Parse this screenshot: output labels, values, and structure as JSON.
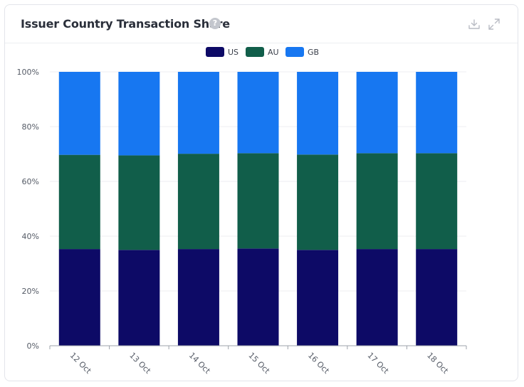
{
  "header": {
    "title": "Issuer Country Transaction Share",
    "help_icon": "question-circle-icon",
    "download_icon": "download-icon",
    "expand_icon": "expand-icon"
  },
  "colors": {
    "US": "#0d0a66",
    "AU": "#115e4a",
    "GB": "#1777f1"
  },
  "chart_data": {
    "type": "bar",
    "stacked": true,
    "title": "Issuer Country Transaction Share",
    "categories": [
      "12 Oct",
      "13 Oct",
      "14 Oct",
      "15 Oct",
      "16 Oct",
      "17 Oct",
      "18 Oct"
    ],
    "series": [
      {
        "name": "US",
        "values": [
          35.3,
          35.0,
          35.3,
          35.5,
          35.0,
          35.3,
          35.3
        ]
      },
      {
        "name": "AU",
        "values": [
          34.4,
          34.5,
          34.8,
          34.8,
          34.8,
          35.0,
          35.0
        ]
      },
      {
        "name": "GB",
        "values": [
          30.3,
          30.5,
          29.9,
          29.7,
          30.2,
          29.7,
          29.7
        ]
      }
    ],
    "yticks": [
      "0%",
      "20%",
      "40%",
      "60%",
      "80%",
      "100%"
    ],
    "ylim": [
      0,
      100
    ],
    "xlabel": "",
    "ylabel": "",
    "legend": "top-center"
  }
}
